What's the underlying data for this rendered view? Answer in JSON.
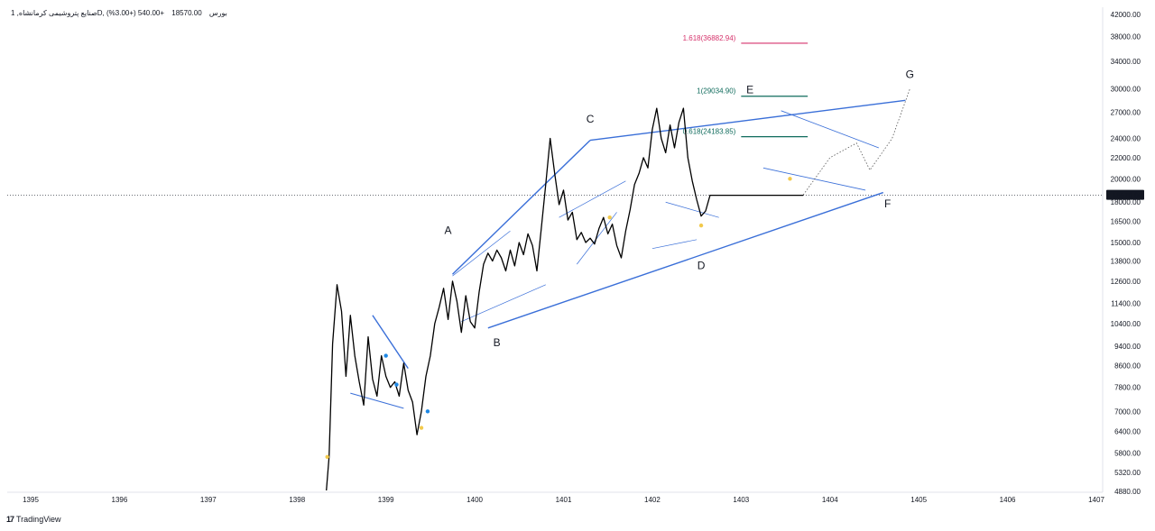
{
  "header": {
    "symbol": "صنایع پتروشیمی کرمانشاه, 1D, بورس",
    "last": "18570.00",
    "change": "+540.00 (+3.00%)"
  },
  "branding": {
    "logo_mark": "17",
    "name": "TradingView"
  },
  "chart_data": {
    "type": "line",
    "x_axis": {
      "labels": [
        "1395",
        "1396",
        "1397",
        "1398",
        "1399",
        "1400",
        "1401",
        "1402",
        "1403",
        "1404",
        "1405",
        "1406",
        "1407"
      ]
    },
    "y_axis": {
      "scale": "log",
      "labels": [
        "42000.00",
        "38000.00",
        "34000.00",
        "30000.00",
        "27000.00",
        "24000.00",
        "22000.00",
        "20000.00",
        "18000.00",
        "16500.00",
        "15000.00",
        "13800.00",
        "12600.00",
        "11400.00",
        "10400.00",
        "9400.00",
        "8600.00",
        "7800.00",
        "7000.00",
        "6400.00",
        "5800.00",
        "5320.00",
        "4880.00"
      ],
      "range": [
        4800,
        44000
      ]
    },
    "current_price": {
      "value": 18570,
      "label": "18570.00",
      "color": "#131722"
    },
    "series": [
      {
        "x": [
          1398.33,
          1398.36,
          1398.4,
          1398.45,
          1398.5,
          1398.55,
          1398.6,
          1398.65,
          1398.7,
          1398.75,
          1398.8,
          1398.85,
          1398.9,
          1398.95,
          1399.0,
          1399.05,
          1399.1,
          1399.15,
          1399.2,
          1399.25,
          1399.3,
          1399.35,
          1399.4,
          1399.45,
          1399.5,
          1399.55,
          1399.6,
          1399.65,
          1399.7,
          1399.75,
          1399.8,
          1399.85,
          1399.9,
          1399.95,
          1400.0,
          1400.05,
          1400.1,
          1400.15,
          1400.2,
          1400.25,
          1400.3,
          1400.35,
          1400.4,
          1400.45,
          1400.5,
          1400.55,
          1400.6,
          1400.65,
          1400.7,
          1400.75,
          1400.8,
          1400.85,
          1400.9,
          1400.95,
          1401.0,
          1401.05,
          1401.1,
          1401.15,
          1401.2,
          1401.25,
          1401.3,
          1401.35,
          1401.4,
          1401.45,
          1401.5,
          1401.55,
          1401.6,
          1401.65,
          1401.7,
          1401.75,
          1401.8,
          1401.85,
          1401.9,
          1401.95,
          1402.0,
          1402.05,
          1402.1,
          1402.15,
          1402.2,
          1402.25,
          1402.3,
          1402.35,
          1402.4,
          1402.45,
          1402.5,
          1402.55,
          1402.6,
          1402.65,
          1402.7,
          1402.75,
          1402.8,
          1402.85,
          1402.9,
          1402.95,
          1403.0,
          1403.05,
          1403.1,
          1403.15,
          1403.2,
          1403.25,
          1403.3,
          1403.35,
          1403.4,
          1403.45,
          1403.5,
          1403.55,
          1403.6,
          1403.65,
          1403.7
        ],
        "y": [
          4900,
          5700,
          9500,
          12400,
          11000,
          8200,
          10800,
          9000,
          8000,
          7200,
          9800,
          8100,
          7500,
          9000,
          8200,
          7800,
          8000,
          7500,
          8700,
          7700,
          7300,
          6300,
          7000,
          8200,
          9000,
          10400,
          11200,
          12200,
          10600,
          12600,
          11500,
          10000,
          11800,
          10500,
          10200,
          12000,
          13600,
          14300,
          13800,
          14500,
          14000,
          13200,
          14500,
          13500,
          15000,
          14200,
          15600,
          14800,
          13200,
          16000,
          19500,
          24000,
          20500,
          17800,
          19000,
          16600,
          17200,
          15200,
          15700,
          15000,
          15300,
          14900,
          16000,
          16800,
          15600,
          16300,
          14800,
          14000,
          15800,
          17400,
          19500,
          20500,
          22000,
          21000,
          25000,
          27500,
          24000,
          22500,
          25500,
          23000,
          25800,
          27500,
          22000,
          19800,
          18200,
          16900,
          17300,
          18570,
          18570,
          18570,
          18570,
          18570,
          18570,
          18570,
          18570,
          18570,
          18570,
          18570,
          18570,
          18570,
          18570,
          18570,
          18570,
          18570,
          18570,
          18570,
          18570,
          18570,
          18570
        ]
      }
    ],
    "wave_labels": [
      "A",
      "B",
      "C",
      "D",
      "E",
      "F",
      "G"
    ],
    "fibonacci": [
      {
        "label": "1.618(36882.94)",
        "value": 36882.94,
        "color": "#d6336c"
      },
      {
        "label": "1(29034.90)",
        "value": 29034.9,
        "color": "#0f6b5c"
      },
      {
        "label": "0.618(24183.85)",
        "value": 24183.85,
        "color": "#0f6b5c"
      }
    ],
    "colors": {
      "price": "#000000",
      "trend": "#3a6fd8",
      "markers": [
        "#f2c94c",
        "#1e88e5"
      ]
    },
    "grid": false,
    "legend": "none"
  }
}
